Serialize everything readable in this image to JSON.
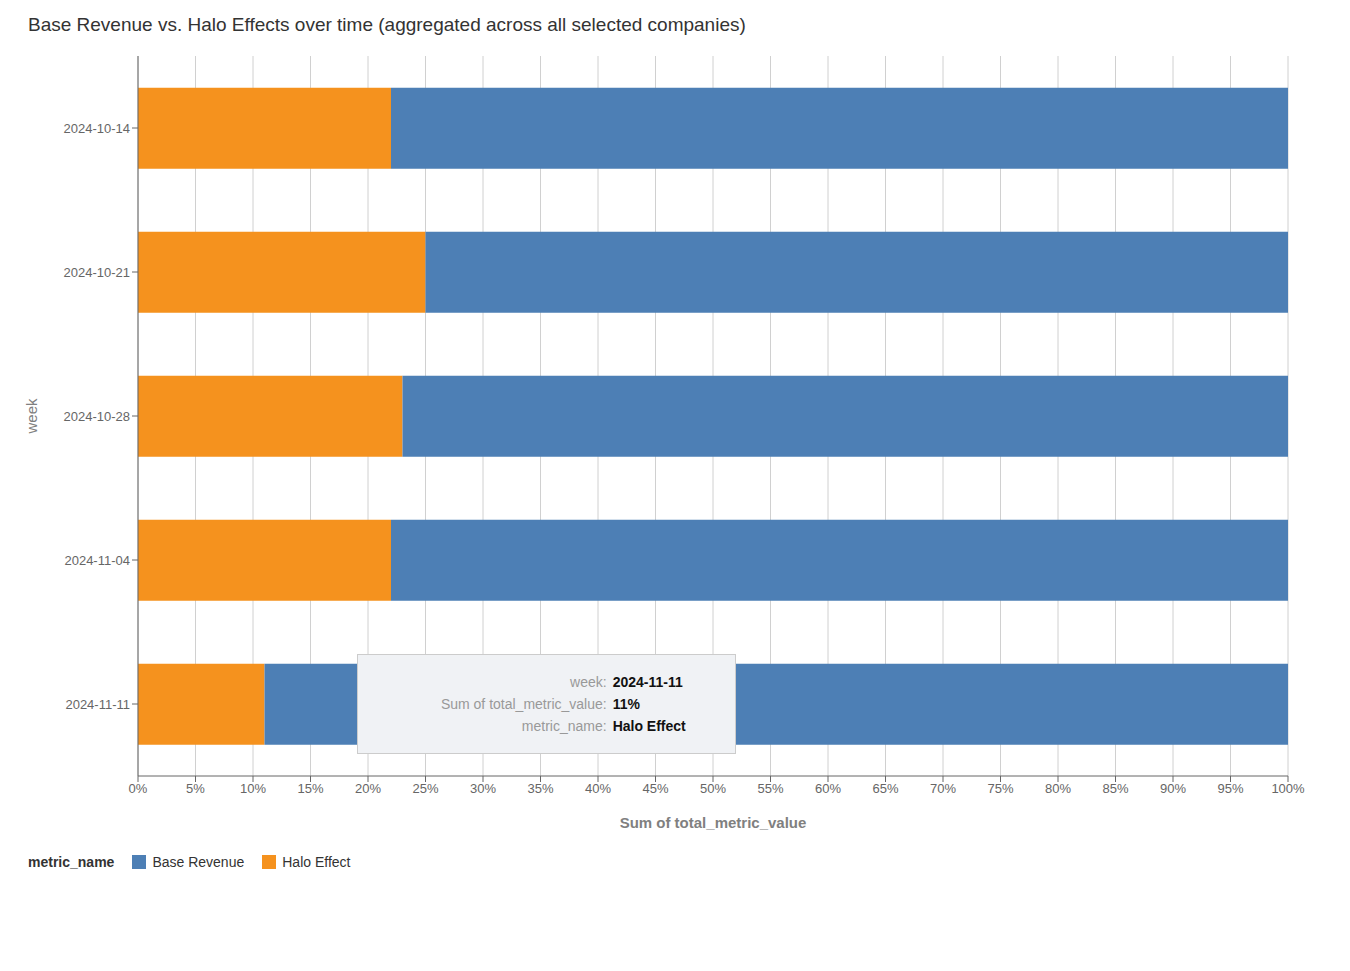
{
  "chart_data": {
    "type": "bar",
    "title": "Base Revenue vs. Halo Effects over time (aggregated across all selected companies)",
    "orientation": "horizontal",
    "stacked": true,
    "categories": [
      "2024-10-14",
      "2024-10-21",
      "2024-10-28",
      "2024-11-04",
      "2024-11-11"
    ],
    "series": [
      {
        "name": "Base Revenue",
        "color": "#4d7fb5",
        "values": [
          78,
          75,
          77,
          78,
          89
        ]
      },
      {
        "name": "Halo Effect",
        "color": "#f5921e",
        "values": [
          22,
          25,
          23,
          22,
          11
        ]
      }
    ],
    "x_label": "Sum of total_metric_value",
    "y_label": "week",
    "xlim": [
      0,
      100
    ],
    "xticks": [
      {
        "value": 0,
        "label": "0%"
      },
      {
        "value": 5,
        "label": "5%"
      },
      {
        "value": 10,
        "label": "10%"
      },
      {
        "value": 15,
        "label": "15%"
      },
      {
        "value": 20,
        "label": "20%"
      },
      {
        "value": 25,
        "label": "25%"
      },
      {
        "value": 30,
        "label": "30%"
      },
      {
        "value": 35,
        "label": "35%"
      },
      {
        "value": 40,
        "label": "40%"
      },
      {
        "value": 45,
        "label": "45%"
      },
      {
        "value": 50,
        "label": "50%"
      },
      {
        "value": 55,
        "label": "55%"
      },
      {
        "value": 60,
        "label": "60%"
      },
      {
        "value": 65,
        "label": "65%"
      },
      {
        "value": 70,
        "label": "70%"
      },
      {
        "value": 75,
        "label": "75%"
      },
      {
        "value": 80,
        "label": "80%"
      },
      {
        "value": 85,
        "label": "85%"
      },
      {
        "value": 90,
        "label": "90%"
      },
      {
        "value": 95,
        "label": "95%"
      },
      {
        "value": 100,
        "label": "100%"
      }
    ],
    "grid": true,
    "legend": "lower left",
    "legend_title": "metric_name",
    "annotations": [
      {
        "label": "week:",
        "text": "2024-11-11"
      },
      {
        "label": "Sum of total_metric_value:",
        "text": "11%"
      },
      {
        "label": "metric_name:",
        "text": "Halo Effect"
      }
    ]
  }
}
